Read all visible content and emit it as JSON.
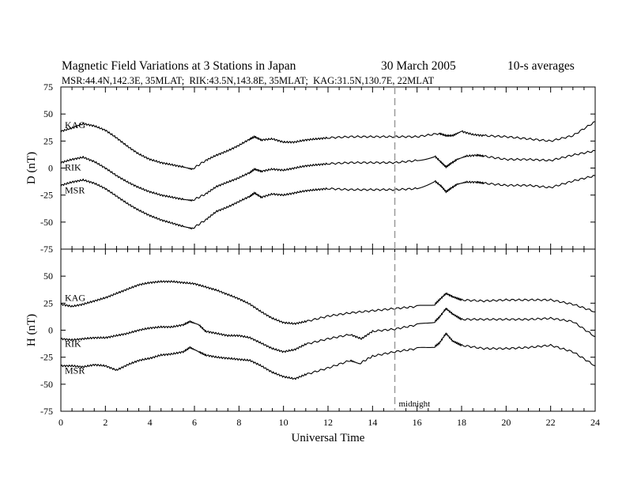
{
  "header": {
    "title": "Magnetic Field Variations at 3 Stations in Japan",
    "date": "30 March 2005",
    "averaging": "10-s averages",
    "stations_line": "MSR:44.4N,142.3E, 35MLAT;  RIK:43.5N,143.8E, 35MLAT;  KAG:31.5N,130.7E, 22MLAT"
  },
  "chart_data": [
    {
      "type": "line",
      "ylabel": "D (nT)",
      "xlim": [
        0,
        24
      ],
      "ylim": [
        -75,
        75
      ],
      "yticks": [
        "75",
        "50",
        "25",
        "0",
        "-25",
        "-50",
        "-75"
      ],
      "xticks": [],
      "grid": false,
      "series": [
        {
          "name": "KAG",
          "x": [
            0,
            0.5,
            1,
            1.5,
            2,
            2.5,
            3,
            3.5,
            4,
            4.5,
            5,
            5.5,
            5.9,
            6.5,
            7,
            7.5,
            8,
            8.5,
            8.7,
            9,
            9.5,
            10,
            10.5,
            11,
            11.5,
            12,
            13,
            14,
            15,
            16,
            17,
            17.3,
            17.6,
            18,
            18.5,
            19,
            20,
            21,
            22,
            23,
            24
          ],
          "y": [
            34,
            37,
            41,
            39,
            35,
            28,
            20,
            13,
            8,
            5,
            3,
            1,
            -1,
            7,
            12,
            16,
            21,
            27,
            29,
            26,
            27,
            24,
            24,
            26,
            27,
            28,
            29,
            29,
            29,
            29,
            32,
            30,
            30,
            34,
            31,
            30,
            29,
            27,
            25,
            30,
            43
          ]
        },
        {
          "name": "RIK",
          "x": [
            0,
            0.5,
            1,
            1.5,
            2,
            2.5,
            3,
            3.5,
            4,
            4.5,
            5,
            5.5,
            5.9,
            6.5,
            7,
            7.5,
            8,
            8.5,
            8.7,
            9,
            9.5,
            10,
            10.5,
            11,
            11.5,
            12,
            13,
            14,
            15,
            16,
            16.8,
            17.1,
            17.3,
            17.5,
            17.8,
            18.2,
            18.7,
            19,
            20,
            21,
            22,
            23,
            24
          ],
          "y": [
            5,
            8,
            10,
            6,
            0,
            -7,
            -13,
            -18,
            -22,
            -25,
            -27,
            -29,
            -30,
            -24,
            -17,
            -13,
            -9,
            -4,
            -1,
            -3,
            -1,
            -2,
            0,
            2,
            3,
            4,
            5,
            5,
            5,
            7,
            11,
            5,
            1,
            4,
            8,
            11,
            12,
            11,
            8,
            8,
            7,
            12,
            16
          ]
        },
        {
          "name": "MSR",
          "x": [
            0,
            0.5,
            1,
            1.5,
            2,
            2.5,
            3,
            3.5,
            4,
            4.5,
            5,
            5.5,
            5.9,
            6.5,
            7,
            7.5,
            8,
            8.5,
            8.7,
            9,
            9.5,
            10,
            10.5,
            11,
            11.5,
            12,
            13,
            14,
            15,
            16,
            16.8,
            17.1,
            17.3,
            17.5,
            17.8,
            18.2,
            18.7,
            19,
            20,
            21,
            22,
            23,
            24
          ],
          "y": [
            -16,
            -13,
            -11,
            -14,
            -19,
            -26,
            -33,
            -39,
            -44,
            -48,
            -51,
            -54,
            -56,
            -48,
            -40,
            -36,
            -31,
            -26,
            -23,
            -27,
            -24,
            -25,
            -23,
            -21,
            -20,
            -19,
            -20,
            -20,
            -20,
            -19,
            -12,
            -17,
            -22,
            -19,
            -15,
            -13,
            -13,
            -14,
            -16,
            -16,
            -18,
            -12,
            -7
          ]
        }
      ]
    },
    {
      "type": "line",
      "ylabel": "H (nT)",
      "xlabel": "Universal Time",
      "xlim": [
        0,
        24
      ],
      "ylim": [
        -75,
        75
      ],
      "yticks": [
        "",
        "50",
        "25",
        "0",
        "-25",
        "-50",
        "-75"
      ],
      "xticks": [
        "0",
        "2",
        "4",
        "6",
        "8",
        "10",
        "12",
        "14",
        "16",
        "18",
        "20",
        "22",
        "24"
      ],
      "grid": false,
      "series": [
        {
          "name": "KAG",
          "x": [
            0,
            0.5,
            1,
            1.5,
            2,
            2.5,
            3,
            3.5,
            4,
            4.5,
            5,
            5.5,
            6,
            6.5,
            7,
            7.5,
            8,
            8.5,
            9,
            9.5,
            10,
            10.5,
            11,
            12,
            13,
            14,
            15,
            16,
            16.8,
            17,
            17.3,
            17.6,
            18,
            19,
            20,
            21,
            22,
            23,
            24
          ],
          "y": [
            24,
            22,
            24,
            27,
            30,
            34,
            38,
            42,
            44,
            45,
            45,
            44,
            43,
            40,
            37,
            33,
            29,
            24,
            17,
            11,
            7,
            6,
            8,
            13,
            16,
            18,
            20,
            22,
            24,
            28,
            34,
            31,
            28,
            27,
            28,
            28,
            28,
            24,
            17
          ]
        },
        {
          "name": "RIK",
          "x": [
            0,
            0.5,
            1,
            1.5,
            2,
            2.5,
            3,
            3.5,
            4,
            4.5,
            5,
            5.5,
            5.8,
            6.2,
            6.5,
            7,
            7.5,
            8,
            8.5,
            9,
            9.5,
            10,
            10.5,
            11,
            12,
            13,
            13.5,
            14,
            15,
            16,
            16.8,
            17,
            17.3,
            17.6,
            18,
            19,
            20,
            21,
            22,
            23,
            24
          ],
          "y": [
            -8,
            -9,
            -8,
            -7,
            -7,
            -5,
            -3,
            0,
            2,
            3,
            3,
            5,
            8,
            5,
            -1,
            -3,
            -5,
            -5,
            -7,
            -12,
            -17,
            -20,
            -18,
            -13,
            -8,
            -4,
            -8,
            -1,
            1,
            5,
            8,
            12,
            20,
            15,
            10,
            10,
            10,
            10,
            11,
            8,
            -6
          ]
        },
        {
          "name": "MSR",
          "x": [
            0,
            0.5,
            1,
            1.5,
            2,
            2.5,
            3,
            3.5,
            4,
            4.5,
            5,
            5.5,
            5.8,
            6.2,
            6.5,
            7,
            7.5,
            8,
            8.5,
            9,
            9.5,
            10,
            10.5,
            11,
            12,
            13,
            13.4,
            14,
            15,
            16,
            16.8,
            17,
            17.3,
            17.6,
            18,
            19,
            20,
            21,
            22,
            23,
            24
          ],
          "y": [
            -33,
            -33,
            -34,
            -32,
            -33,
            -37,
            -32,
            -28,
            -26,
            -23,
            -22,
            -20,
            -16,
            -20,
            -23,
            -25,
            -26,
            -27,
            -28,
            -33,
            -39,
            -43,
            -45,
            -41,
            -35,
            -28,
            -31,
            -24,
            -20,
            -17,
            -15,
            -12,
            -3,
            -10,
            -14,
            -17,
            -17,
            -16,
            -14,
            -20,
            -33
          ]
        }
      ]
    }
  ],
  "annotation": {
    "marker_x": 15,
    "marker_label": "midnight"
  }
}
